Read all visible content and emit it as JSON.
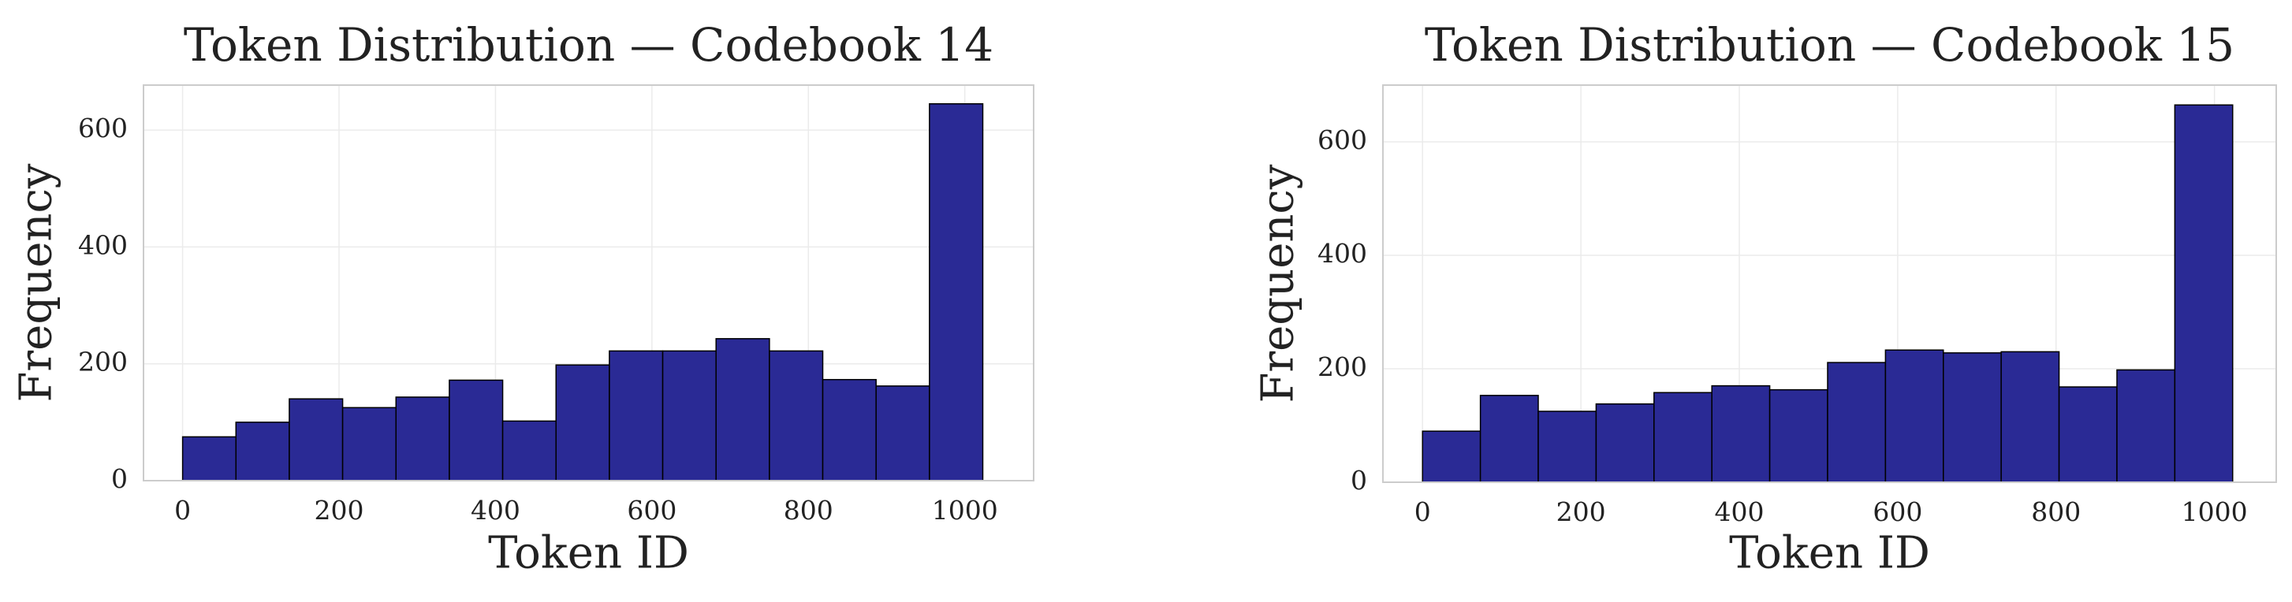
{
  "chart_data": [
    {
      "type": "histogram",
      "title": "Token Distribution — Codebook 14",
      "x_label": "Token ID",
      "y_label": "Frequency",
      "bins": [
        0,
        68.2,
        136.4,
        204.6,
        272.8,
        341,
        409.2,
        477.4,
        545.6,
        613.8,
        682,
        750.2,
        818.4,
        886.6,
        954.8,
        1023
      ],
      "counts": [
        75,
        100,
        140,
        125,
        143,
        172,
        102,
        198,
        222,
        222,
        243,
        222,
        173,
        162,
        645
      ],
      "color": "#262693",
      "xlim": [
        -50,
        1088
      ],
      "ylim": [
        0,
        677
      ],
      "xticks": [
        0,
        200,
        400,
        600,
        800,
        1000
      ],
      "yticks": [
        0,
        200,
        400,
        600
      ],
      "grid": true
    },
    {
      "type": "histogram",
      "title": "Token Distribution — Codebook 15",
      "x_label": "Token ID",
      "y_label": "Frequency",
      "bins": [
        0,
        73.07,
        146.14,
        219.21,
        292.29,
        365.36,
        438.43,
        511.5,
        584.57,
        657.64,
        730.71,
        803.79,
        876.86,
        949.93,
        1023
      ],
      "counts": [
        90,
        153,
        125,
        138,
        158,
        170,
        163,
        211,
        233,
        228,
        230,
        168,
        198,
        665
      ],
      "color": "#262693",
      "xlim": [
        -50,
        1078
      ],
      "ylim": [
        0,
        700
      ],
      "xticks": [
        0,
        200,
        400,
        600,
        800,
        1000
      ],
      "yticks": [
        0,
        200,
        400,
        600
      ],
      "grid": true
    }
  ]
}
